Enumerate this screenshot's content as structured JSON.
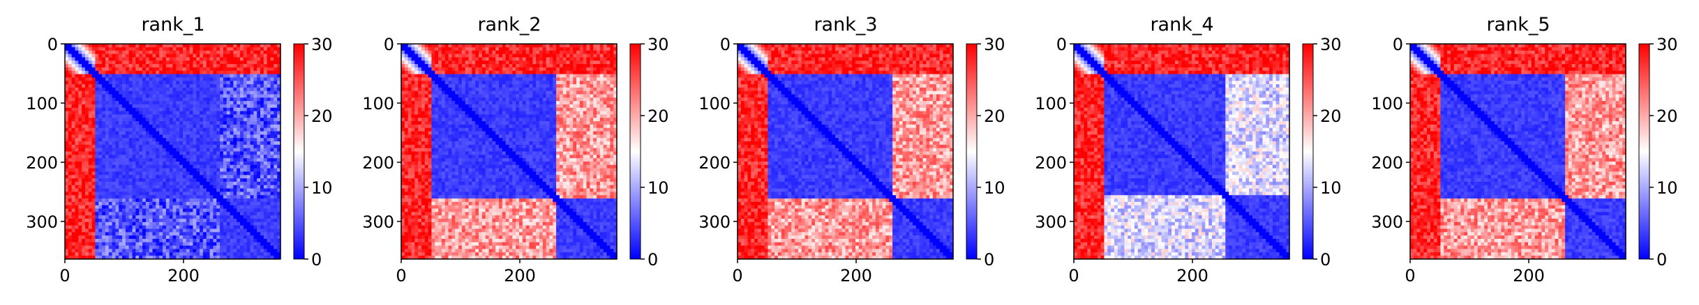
{
  "chart_data": [
    {
      "type": "heatmap",
      "title": "rank_1",
      "x_ticks": [
        0,
        200
      ],
      "y_ticks": [
        0,
        100,
        200,
        300
      ],
      "colorbar_ticks": [
        0,
        10,
        20,
        30
      ],
      "matrix_size": 363,
      "colorbar_range": [
        0,
        30
      ],
      "colormap": "bwr",
      "domain_boundaries": [
        50,
        262
      ],
      "inter_domain_level": "low"
    },
    {
      "type": "heatmap",
      "title": "rank_2",
      "x_ticks": [
        0,
        200
      ],
      "y_ticks": [
        0,
        100,
        200,
        300
      ],
      "colorbar_ticks": [
        0,
        10,
        20,
        30
      ],
      "matrix_size": 363,
      "colorbar_range": [
        0,
        30
      ],
      "colormap": "bwr",
      "domain_boundaries": [
        50,
        260
      ],
      "inter_domain_level": "high"
    },
    {
      "type": "heatmap",
      "title": "rank_3",
      "x_ticks": [
        0,
        200
      ],
      "y_ticks": [
        0,
        100,
        200,
        300
      ],
      "colorbar_ticks": [
        0,
        10,
        20,
        30
      ],
      "matrix_size": 363,
      "colorbar_range": [
        0,
        30
      ],
      "colormap": "bwr",
      "domain_boundaries": [
        50,
        262
      ],
      "inter_domain_level": "high"
    },
    {
      "type": "heatmap",
      "title": "rank_4",
      "x_ticks": [
        0,
        200
      ],
      "y_ticks": [
        0,
        100,
        200,
        300
      ],
      "colorbar_ticks": [
        0,
        10,
        20,
        30
      ],
      "matrix_size": 363,
      "colorbar_range": [
        0,
        30
      ],
      "colormap": "bwr",
      "domain_boundaries": [
        50,
        258
      ],
      "inter_domain_level": "medium"
    },
    {
      "type": "heatmap",
      "title": "rank_5",
      "x_ticks": [
        0,
        200
      ],
      "y_ticks": [
        0,
        100,
        200,
        300
      ],
      "colorbar_ticks": [
        0,
        10,
        20,
        30
      ],
      "matrix_size": 363,
      "colorbar_range": [
        0,
        30
      ],
      "colormap": "bwr",
      "domain_boundaries": [
        50,
        260
      ],
      "inter_domain_level": "high"
    }
  ],
  "colors": {
    "low": "#0000ff",
    "mid": "#ffffff",
    "high": "#ff0000"
  }
}
